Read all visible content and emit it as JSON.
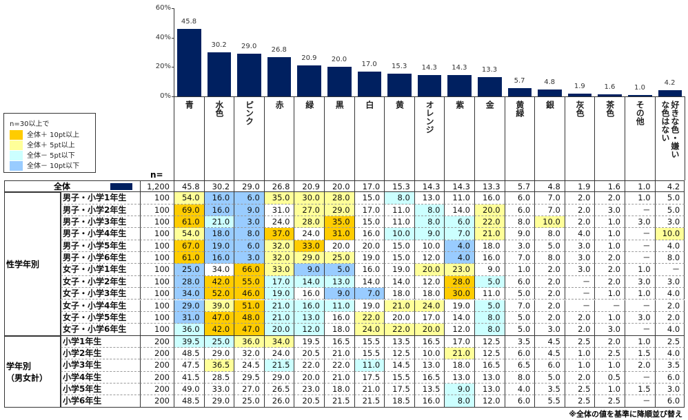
{
  "chart_data": {
    "type": "bar",
    "title": "",
    "xlabel": "",
    "ylabel": "",
    "ylim": [
      0,
      60
    ],
    "yticks": [
      "0%",
      "20%",
      "40%",
      "60%"
    ],
    "categories": [
      "青",
      "水色",
      "ピンク",
      "赤",
      "緑",
      "黒",
      "白",
      "黄",
      "オレンジ",
      "紫",
      "金",
      "黄緑",
      "銀",
      "灰色",
      "茶色",
      "その他",
      "好きな色・嫌いな色はない"
    ],
    "values": [
      45.8,
      30.2,
      29.0,
      26.8,
      20.9,
      20.0,
      17.0,
      15.3,
      14.3,
      14.3,
      13.3,
      5.7,
      4.8,
      1.9,
      1.6,
      1.0,
      4.2
    ],
    "value_labels": [
      "45.8",
      "30.2",
      "29.0",
      "26.8",
      "20.9",
      "20.0",
      "17.0",
      "15.3",
      "14.3",
      "14.3",
      "13.3",
      "5.7",
      "4.8",
      "1.9",
      "1.6",
      "1.0",
      "4.2"
    ],
    "bar_color": "#002060"
  },
  "legend": {
    "title": "n=30以上で",
    "items": [
      {
        "label": "全体＋ 10pt以上",
        "color": "#FFCC00"
      },
      {
        "label": "全体＋ 5pt以上",
        "color": "#FFFF99"
      },
      {
        "label": "全体－ 5pt以下",
        "color": "#CCFFFF"
      },
      {
        "label": "全体－ 10pt以下",
        "color": "#99CCFF"
      }
    ]
  },
  "colors": {
    "O": "#FFCC00",
    "Y": "#FFFF99",
    "C": "#CCFFFF",
    "B": "#99CCFF"
  },
  "table": {
    "n_header": "n=",
    "total": {
      "label": "全体",
      "n": "1,200",
      "values": [
        "45.8",
        "30.2",
        "29.0",
        "26.8",
        "20.9",
        "20.0",
        "17.0",
        "15.3",
        "14.3",
        "14.3",
        "13.3",
        "5.7",
        "4.8",
        "1.9",
        "1.6",
        "1.0",
        "4.2"
      ]
    },
    "groups": [
      {
        "label": "性学年別",
        "rows": [
          {
            "label": "男子・小学1年生",
            "n": "100",
            "values": [
              "54.0",
              "16.0",
              "6.0",
              "35.0",
              "30.0",
              "28.0",
              "15.0",
              "8.0",
              "13.0",
              "11.0",
              "16.0",
              "6.0",
              "7.0",
              "2.0",
              "2.0",
              "1.0",
              "5.0"
            ],
            "hl": [
              "Y",
              "B",
              "B",
              "Y",
              "Y",
              "Y",
              "",
              "C",
              "",
              "",
              "",
              "",
              "",
              "",
              "",
              "",
              ""
            ]
          },
          {
            "label": "男子・小学2年生",
            "n": "100",
            "values": [
              "69.0",
              "16.0",
              "9.0",
              "31.0",
              "27.0",
              "29.0",
              "17.0",
              "11.0",
              "8.0",
              "14.0",
              "20.0",
              "6.0",
              "7.0",
              "2.0",
              "3.0",
              "－",
              "5.0"
            ],
            "hl": [
              "O",
              "B",
              "B",
              "",
              "Y",
              "Y",
              "",
              "",
              "C",
              "",
              "Y",
              "",
              "",
              "",
              "",
              "",
              ""
            ]
          },
          {
            "label": "男子・小学3年生",
            "n": "100",
            "values": [
              "61.0",
              "21.0",
              "3.0",
              "24.0",
              "28.0",
              "35.0",
              "15.0",
              "11.0",
              "8.0",
              "6.0",
              "22.0",
              "8.0",
              "10.0",
              "2.0",
              "1.0",
              "3.0",
              "3.0"
            ],
            "hl": [
              "O",
              "C",
              "B",
              "",
              "Y",
              "O",
              "",
              "",
              "C",
              "C",
              "Y",
              "",
              "Y",
              "",
              "",
              "",
              ""
            ]
          },
          {
            "label": "男子・小学4年生",
            "n": "100",
            "values": [
              "54.0",
              "18.0",
              "8.0",
              "37.0",
              "24.0",
              "31.0",
              "16.0",
              "10.0",
              "9.0",
              "7.0",
              "21.0",
              "9.0",
              "8.0",
              "4.0",
              "1.0",
              "－",
              "10.0"
            ],
            "hl": [
              "Y",
              "B",
              "B",
              "O",
              "",
              "O",
              "",
              "C",
              "C",
              "C",
              "Y",
              "",
              "",
              "",
              "",
              "",
              "Y"
            ]
          },
          {
            "label": "男子・小学5年生",
            "n": "100",
            "values": [
              "67.0",
              "19.0",
              "6.0",
              "32.0",
              "33.0",
              "20.0",
              "20.0",
              "15.0",
              "10.0",
              "4.0",
              "18.0",
              "3.0",
              "5.0",
              "3.0",
              "1.0",
              "－",
              "4.0"
            ],
            "hl": [
              "O",
              "B",
              "B",
              "Y",
              "O",
              "",
              "",
              "",
              "",
              "B",
              "",
              "",
              "",
              "",
              "",
              "",
              ""
            ]
          },
          {
            "label": "男子・小学6年生",
            "n": "100",
            "values": [
              "61.0",
              "16.0",
              "3.0",
              "32.0",
              "29.0",
              "25.0",
              "19.0",
              "15.0",
              "12.0",
              "4.0",
              "16.0",
              "7.0",
              "8.0",
              "3.0",
              "2.0",
              "－",
              "8.0"
            ],
            "hl": [
              "O",
              "B",
              "B",
              "Y",
              "Y",
              "Y",
              "",
              "",
              "",
              "B",
              "",
              "",
              "",
              "",
              "",
              "",
              ""
            ]
          },
          {
            "label": "女子・小学1年生",
            "n": "100",
            "values": [
              "25.0",
              "34.0",
              "66.0",
              "33.0",
              "9.0",
              "5.0",
              "16.0",
              "19.0",
              "20.0",
              "23.0",
              "9.0",
              "1.0",
              "2.0",
              "3.0",
              "2.0",
              "1.0",
              "－"
            ],
            "hl": [
              "B",
              "",
              "O",
              "Y",
              "B",
              "B",
              "",
              "",
              "Y",
              "Y",
              "",
              "",
              "",
              "",
              "",
              "",
              ""
            ]
          },
          {
            "label": "女子・小学2年生",
            "n": "100",
            "values": [
              "28.0",
              "42.0",
              "55.0",
              "17.0",
              "14.0",
              "13.0",
              "14.0",
              "14.0",
              "12.0",
              "28.0",
              "5.0",
              "6.0",
              "2.0",
              "－",
              "2.0",
              "3.0",
              "3.0"
            ],
            "hl": [
              "B",
              "O",
              "O",
              "C",
              "C",
              "C",
              "",
              "",
              "",
              "O",
              "C",
              "",
              "",
              "",
              "",
              "",
              ""
            ]
          },
          {
            "label": "女子・小学3年生",
            "n": "100",
            "values": [
              "34.0",
              "52.0",
              "46.0",
              "19.0",
              "16.0",
              "9.0",
              "7.0",
              "18.0",
              "18.0",
              "30.0",
              "11.0",
              "5.0",
              "2.0",
              "－",
              "1.0",
              "1.0",
              "4.0"
            ],
            "hl": [
              "B",
              "O",
              "O",
              "C",
              "",
              "B",
              "B",
              "",
              "",
              "O",
              "",
              "",
              "",
              "",
              "",
              "",
              ""
            ]
          },
          {
            "label": "女子・小学4年生",
            "n": "100",
            "values": [
              "29.0",
              "39.0",
              "51.0",
              "21.0",
              "16.0",
              "11.0",
              "19.0",
              "21.0",
              "24.0",
              "19.0",
              "5.0",
              "7.0",
              "2.0",
              "－",
              "－",
              "－",
              "2.0"
            ],
            "hl": [
              "B",
              "Y",
              "O",
              "C",
              "C",
              "C",
              "",
              "Y",
              "Y",
              "",
              "C",
              "",
              "",
              "",
              "",
              "",
              ""
            ]
          },
          {
            "label": "女子・小学5年生",
            "n": "100",
            "values": [
              "31.0",
              "47.0",
              "48.0",
              "21.0",
              "13.0",
              "16.0",
              "22.0",
              "20.0",
              "17.0",
              "14.0",
              "8.0",
              "5.0",
              "2.0",
              "2.0",
              "1.0",
              "3.0",
              "2.0"
            ],
            "hl": [
              "B",
              "O",
              "O",
              "C",
              "C",
              "",
              "Y",
              "",
              "",
              "",
              "C",
              "",
              "",
              "",
              "",
              "",
              ""
            ]
          },
          {
            "label": "女子・小学6年生",
            "n": "100",
            "values": [
              "36.0",
              "42.0",
              "47.0",
              "20.0",
              "12.0",
              "18.0",
              "24.0",
              "22.0",
              "20.0",
              "12.0",
              "8.0",
              "5.0",
              "3.0",
              "2.0",
              "3.0",
              "－",
              "4.0"
            ],
            "hl": [
              "C",
              "O",
              "O",
              "C",
              "C",
              "",
              "Y",
              "Y",
              "Y",
              "",
              "C",
              "",
              "",
              "",
              "",
              "",
              ""
            ]
          }
        ]
      },
      {
        "label": "学年別\n（男女計）",
        "rows": [
          {
            "label": "小学1年生",
            "n": "200",
            "values": [
              "39.5",
              "25.0",
              "36.0",
              "34.0",
              "19.5",
              "16.5",
              "15.5",
              "13.5",
              "16.5",
              "17.0",
              "12.5",
              "3.5",
              "4.5",
              "2.5",
              "2.0",
              "1.0",
              "2.5"
            ],
            "hl": [
              "C",
              "C",
              "Y",
              "Y",
              "",
              "",
              "",
              "",
              "",
              "",
              "",
              "",
              "",
              "",
              "",
              "",
              ""
            ]
          },
          {
            "label": "小学2年生",
            "n": "200",
            "values": [
              "48.5",
              "29.0",
              "32.0",
              "24.0",
              "20.5",
              "21.0",
              "15.5",
              "12.5",
              "10.0",
              "21.0",
              "12.5",
              "6.0",
              "4.5",
              "1.0",
              "2.5",
              "1.5",
              "4.0"
            ],
            "hl": [
              "",
              "",
              "",
              "",
              "",
              "",
              "",
              "",
              "",
              "Y",
              "",
              "",
              "",
              "",
              "",
              "",
              ""
            ]
          },
          {
            "label": "小学3年生",
            "n": "200",
            "values": [
              "47.5",
              "36.5",
              "24.5",
              "21.5",
              "22.0",
              "22.0",
              "11.0",
              "14.5",
              "13.0",
              "18.0",
              "16.5",
              "6.5",
              "6.0",
              "1.0",
              "1.0",
              "2.0",
              "3.5"
            ],
            "hl": [
              "",
              "Y",
              "",
              "C",
              "",
              "",
              "C",
              "",
              "",
              "",
              "",
              "",
              "",
              "",
              "",
              "",
              ""
            ]
          },
          {
            "label": "小学4年生",
            "n": "200",
            "values": [
              "41.5",
              "28.5",
              "29.5",
              "29.0",
              "20.0",
              "21.0",
              "17.5",
              "15.5",
              "16.5",
              "13.0",
              "13.0",
              "8.0",
              "5.0",
              "2.0",
              "0.5",
              "－",
              "6.0"
            ],
            "hl": [
              "",
              "",
              "",
              "",
              "",
              "",
              "",
              "",
              "",
              "",
              "",
              "",
              "",
              "",
              "",
              "",
              ""
            ]
          },
          {
            "label": "小学5年生",
            "n": "200",
            "values": [
              "49.0",
              "33.0",
              "27.0",
              "26.5",
              "23.0",
              "18.0",
              "21.0",
              "17.5",
              "13.5",
              "9.0",
              "13.0",
              "4.0",
              "3.5",
              "2.5",
              "1.0",
              "1.5",
              "3.0"
            ],
            "hl": [
              "",
              "",
              "",
              "",
              "",
              "",
              "",
              "",
              "",
              "C",
              "",
              "",
              "",
              "",
              "",
              "",
              ""
            ]
          },
          {
            "label": "小学6年生",
            "n": "200",
            "values": [
              "48.5",
              "29.0",
              "25.0",
              "26.0",
              "20.5",
              "21.5",
              "21.5",
              "18.5",
              "16.0",
              "8.0",
              "12.0",
              "6.0",
              "5.5",
              "2.5",
              "2.5",
              "－",
              "6.0"
            ],
            "hl": [
              "",
              "",
              "",
              "",
              "",
              "",
              "",
              "",
              "",
              "C",
              "",
              "",
              "",
              "",
              "",
              "",
              ""
            ]
          }
        ]
      }
    ]
  },
  "footnote": "※全体の値を基準に降順並び替え"
}
